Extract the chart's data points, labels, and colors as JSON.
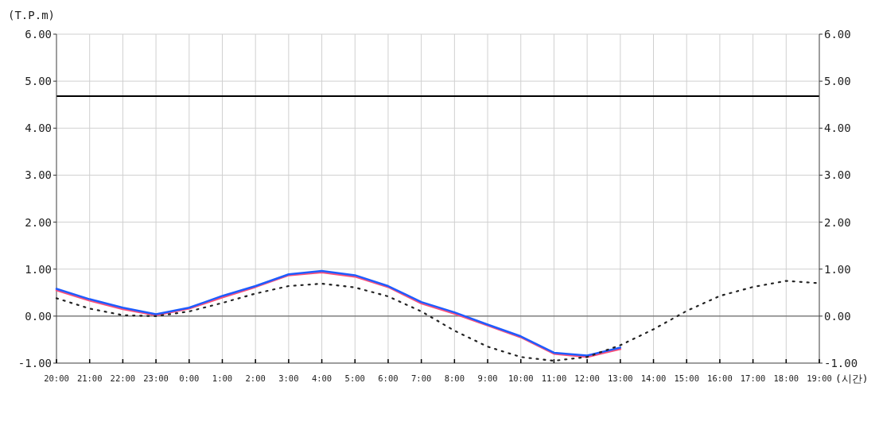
{
  "chart_data": {
    "type": "line",
    "ylabel": "(T.P.m)",
    "xlabel": "(시간)",
    "categories": [
      "20:00",
      "21:00",
      "22:00",
      "23:00",
      "0:00",
      "1:00",
      "2:00",
      "3:00",
      "4:00",
      "5:00",
      "6:00",
      "7:00",
      "8:00",
      "9:00",
      "10:00",
      "11:00",
      "12:00",
      "13:00",
      "14:00",
      "15:00",
      "16:00",
      "17:00",
      "18:00",
      "19:00"
    ],
    "series": [
      {
        "color": "#ff5078",
        "line_style": "solid",
        "values": [
          0.55,
          0.33,
          0.15,
          0.02,
          0.16,
          0.4,
          0.62,
          0.87,
          0.93,
          0.84,
          0.62,
          0.27,
          0.05,
          -0.2,
          -0.45,
          -0.8,
          -0.87,
          -0.7,
          null,
          null,
          null,
          null,
          null,
          null
        ]
      },
      {
        "color": "#1f5cff",
        "line_style": "solid",
        "values": [
          0.58,
          0.36,
          0.18,
          0.04,
          0.18,
          0.43,
          0.64,
          0.89,
          0.96,
          0.87,
          0.64,
          0.3,
          0.08,
          -0.18,
          -0.43,
          -0.78,
          -0.84,
          -0.67,
          null,
          null,
          null,
          null,
          null,
          null
        ]
      },
      {
        "color": "#222222",
        "line_style": "dotted",
        "values": [
          0.38,
          0.16,
          0.02,
          0.0,
          0.1,
          0.28,
          0.48,
          0.64,
          0.69,
          0.61,
          0.42,
          0.1,
          -0.31,
          -0.65,
          -0.87,
          -0.95,
          -0.87,
          -0.62,
          -0.28,
          0.11,
          0.43,
          0.62,
          0.75,
          0.7
        ]
      }
    ],
    "ylim": [
      -1,
      6
    ],
    "yticks": [
      {
        "value": -1,
        "label": "-1.00"
      },
      {
        "value": 0,
        "label": "0.00"
      },
      {
        "value": 1,
        "label": "1.00"
      },
      {
        "value": 2,
        "label": "2.00"
      },
      {
        "value": 3,
        "label": "3.00"
      },
      {
        "value": 4,
        "label": "4.00"
      },
      {
        "value": 5,
        "label": "5.00"
      },
      {
        "value": 6,
        "label": "6.00"
      }
    ],
    "y2lim": [
      -1,
      6
    ],
    "y2ticks": [
      {
        "value": -1,
        "label": "-1.00"
      },
      {
        "value": 0,
        "label": "0.00"
      },
      {
        "value": 1,
        "label": "1.00"
      },
      {
        "value": 2,
        "label": "2.00"
      },
      {
        "value": 3,
        "label": "3.00"
      },
      {
        "value": 4,
        "label": "4.00"
      },
      {
        "value": 5,
        "label": "5.00"
      },
      {
        "value": 6,
        "label": "6.00"
      }
    ],
    "ref_lines": [
      {
        "axis": "y",
        "value": 4.68,
        "color": "#000000"
      },
      {
        "axis": "y",
        "value": 0,
        "color": "#555555"
      }
    ],
    "grid": true
  }
}
